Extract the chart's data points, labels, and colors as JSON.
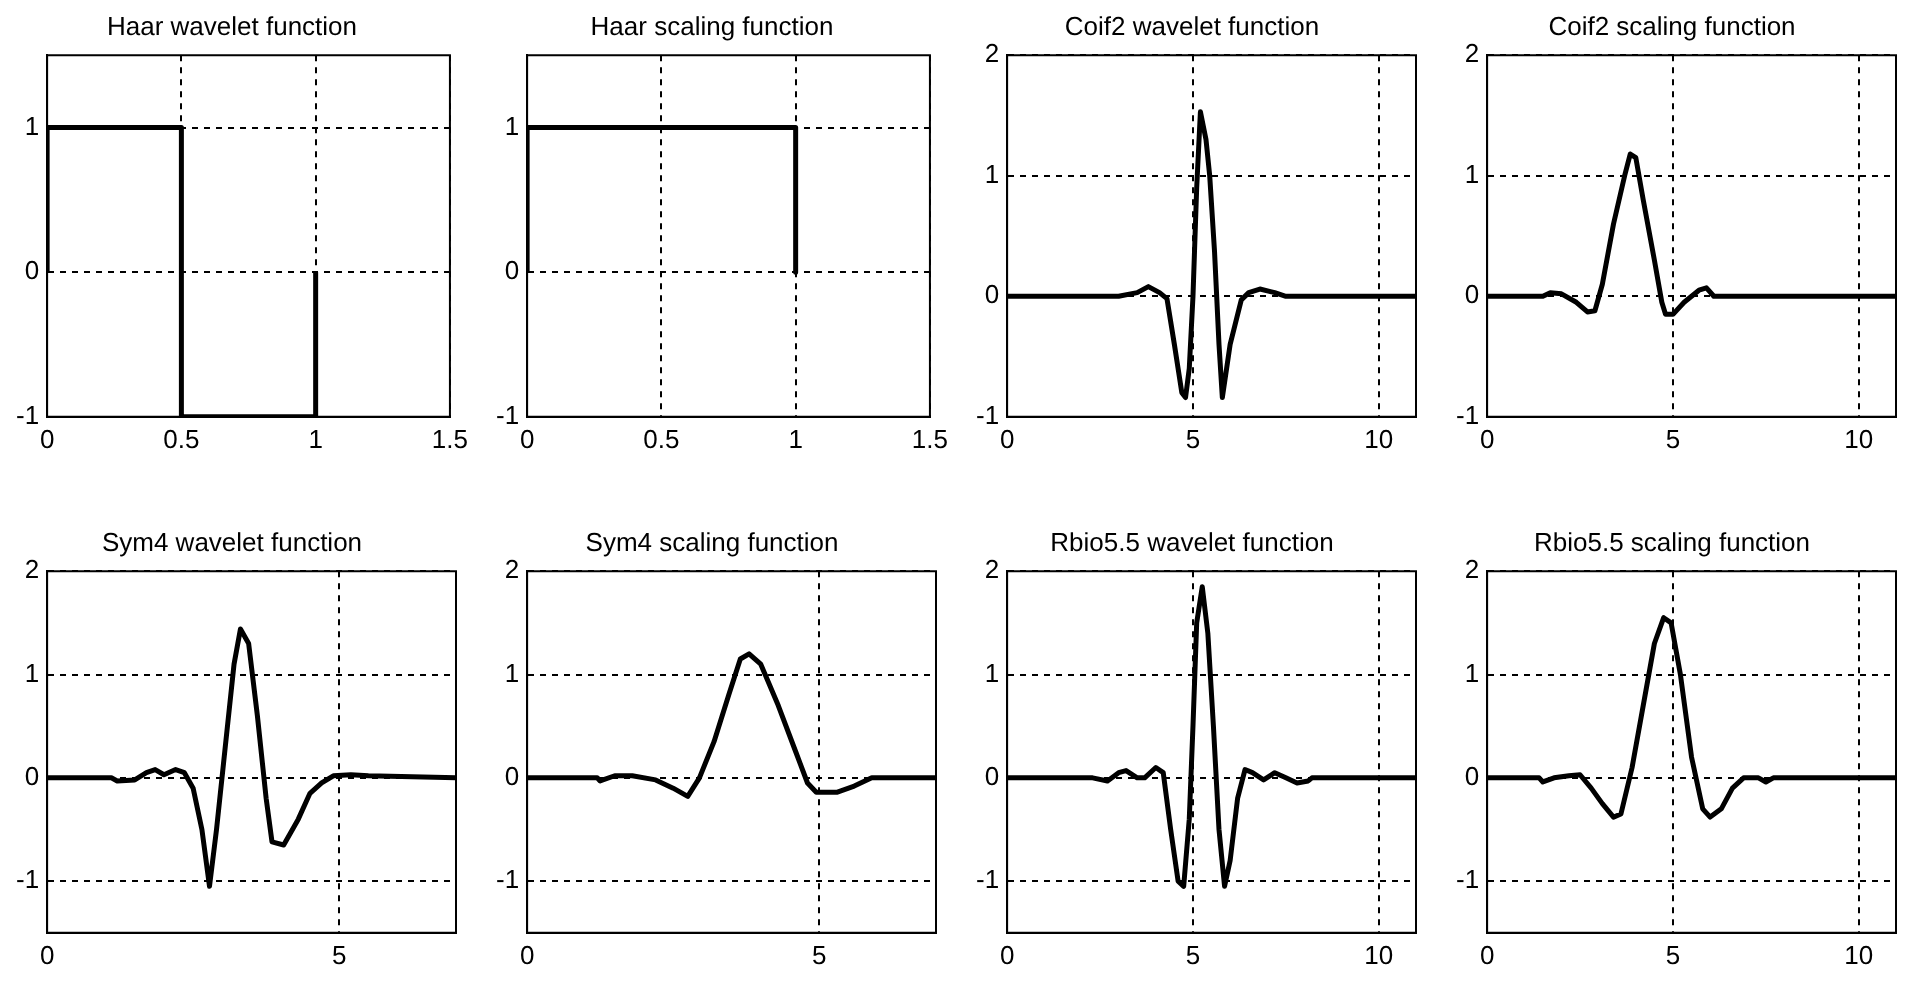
{
  "chart_data": [
    {
      "type": "line",
      "title": "Haar wavelet function",
      "x": [
        0,
        0,
        0.5,
        0.5,
        1,
        1
      ],
      "series": [
        {
          "color": "#000000",
          "values": [
            0,
            1,
            1,
            -1,
            -1,
            0
          ]
        }
      ],
      "xlim": [
        0,
        1.5
      ],
      "ylim": [
        -1,
        1.5
      ],
      "xticks": [
        0,
        0.5,
        1,
        1.5
      ],
      "yticks": [
        -1,
        0,
        1
      ],
      "grid": true
    },
    {
      "type": "line",
      "title": "Haar scaling function",
      "x": [
        0,
        0,
        1,
        1
      ],
      "series": [
        {
          "color": "#000000",
          "values": [
            0,
            1,
            1,
            0
          ]
        }
      ],
      "xlim": [
        0,
        1.5
      ],
      "ylim": [
        -1,
        1.5
      ],
      "xticks": [
        0,
        0.5,
        1,
        1.5
      ],
      "yticks": [
        -1,
        0,
        1
      ],
      "grid": true
    },
    {
      "type": "line",
      "title": "Coif2 wavelet function",
      "x": [
        0,
        3,
        3.5,
        3.8,
        4.1,
        4.3,
        4.5,
        4.7,
        4.8,
        4.9,
        5.0,
        5.1,
        5.2,
        5.35,
        5.45,
        5.58,
        5.7,
        5.79,
        6.0,
        6.3,
        6.5,
        6.8,
        7.2,
        7.5,
        11
      ],
      "series": [
        {
          "color": "#000000",
          "values": [
            0,
            0,
            0.03,
            0.08,
            0.03,
            -0.02,
            -0.4,
            -0.8,
            -0.84,
            -0.6,
            0,
            0.9,
            1.53,
            1.3,
            1.0,
            0.37,
            -0.4,
            -0.84,
            -0.4,
            -0.03,
            0.03,
            0.06,
            0.03,
            0,
            0
          ]
        }
      ],
      "xlim": [
        0,
        11
      ],
      "ylim": [
        -1,
        2
      ],
      "xticks": [
        0,
        5,
        10
      ],
      "yticks": [
        -1,
        0,
        1,
        2
      ],
      "grid": true
    },
    {
      "type": "line",
      "title": "Coif2 scaling function",
      "x": [
        0,
        1.5,
        1.7,
        2.0,
        2.4,
        2.7,
        2.9,
        3.1,
        3.4,
        3.7,
        3.85,
        4.0,
        4.2,
        4.5,
        4.7,
        4.8,
        5.0,
        5.3,
        5.7,
        5.9,
        6.1,
        11
      ],
      "series": [
        {
          "color": "#000000",
          "values": [
            0,
            0,
            0.03,
            0.02,
            -0.05,
            -0.13,
            -0.12,
            0.1,
            0.6,
            1.0,
            1.18,
            1.15,
            0.8,
            0.3,
            -0.05,
            -0.15,
            -0.15,
            -0.05,
            0.05,
            0.07,
            0,
            0
          ]
        }
      ],
      "xlim": [
        0,
        11
      ],
      "ylim": [
        -1,
        2
      ],
      "xticks": [
        0,
        5,
        10
      ],
      "yticks": [
        -1,
        0,
        1,
        2
      ],
      "grid": true
    },
    {
      "type": "line",
      "title": "Sym4 wavelet function",
      "x": [
        0,
        1.1,
        1.2,
        1.5,
        1.7,
        1.85,
        2.0,
        2.2,
        2.35,
        2.5,
        2.65,
        2.78,
        2.9,
        3.05,
        3.2,
        3.31,
        3.45,
        3.6,
        3.75,
        3.85,
        4.05,
        4.3,
        4.5,
        4.7,
        4.9,
        5.2,
        5.5,
        7
      ],
      "series": [
        {
          "color": "#000000",
          "values": [
            0,
            0,
            -0.03,
            -0.02,
            0.05,
            0.08,
            0.03,
            0.08,
            0.05,
            -0.1,
            -0.5,
            -1.05,
            -0.5,
            0.3,
            1.1,
            1.44,
            1.3,
            0.6,
            -0.2,
            -0.62,
            -0.65,
            -0.4,
            -0.15,
            -0.05,
            0.02,
            0.03,
            0.02,
            0
          ]
        }
      ],
      "xlim": [
        0,
        7
      ],
      "ylim": [
        -1.5,
        2
      ],
      "xticks": [
        0,
        5
      ],
      "yticks": [
        -1,
        0,
        1,
        2
      ],
      "grid": true
    },
    {
      "type": "line",
      "title": "Sym4 scaling function",
      "x": [
        0,
        1.2,
        1.25,
        1.5,
        1.8,
        2.2,
        2.5,
        2.75,
        2.95,
        3.2,
        3.45,
        3.65,
        3.8,
        4.0,
        4.3,
        4.6,
        4.8,
        4.95,
        5.3,
        5.6,
        5.9,
        7
      ],
      "series": [
        {
          "color": "#000000",
          "values": [
            0,
            0,
            -0.03,
            0.02,
            0.02,
            -0.02,
            -0.1,
            -0.18,
            0,
            0.35,
            0.8,
            1.15,
            1.2,
            1.1,
            0.7,
            0.25,
            -0.05,
            -0.14,
            -0.14,
            -0.08,
            0,
            0
          ]
        }
      ],
      "xlim": [
        0,
        7
      ],
      "ylim": [
        -1.5,
        2
      ],
      "xticks": [
        0,
        5
      ],
      "yticks": [
        -1,
        0,
        1,
        2
      ],
      "grid": true
    },
    {
      "type": "line",
      "title": "Rbio5.5 wavelet function",
      "x": [
        0,
        2.3,
        2.7,
        3.0,
        3.2,
        3.5,
        3.7,
        4.0,
        4.2,
        4.4,
        4.6,
        4.75,
        4.9,
        5.0,
        5.1,
        5.25,
        5.4,
        5.55,
        5.7,
        5.85,
        6.0,
        6.2,
        6.4,
        6.6,
        6.9,
        7.2,
        7.5,
        7.8,
        8.1,
        8.2,
        11
      ],
      "series": [
        {
          "color": "#000000",
          "values": [
            0,
            0,
            -0.03,
            0.05,
            0.07,
            0,
            0,
            0.1,
            0.05,
            -0.5,
            -1.0,
            -1.05,
            -0.4,
            0.5,
            1.5,
            1.85,
            1.4,
            0.5,
            -0.5,
            -1.05,
            -0.8,
            -0.2,
            0.08,
            0.05,
            -0.02,
            0.05,
            0,
            -0.05,
            -0.03,
            0,
            0
          ]
        }
      ],
      "xlim": [
        0,
        11
      ],
      "ylim": [
        -1.5,
        2
      ],
      "xticks": [
        0,
        5,
        10
      ],
      "yticks": [
        -1,
        0,
        1,
        2
      ],
      "grid": true
    },
    {
      "type": "line",
      "title": "Rbio5.5 scaling function",
      "x": [
        0,
        1.4,
        1.5,
        1.8,
        2.2,
        2.5,
        2.8,
        3.1,
        3.4,
        3.6,
        3.9,
        4.2,
        4.5,
        4.75,
        4.95,
        5.2,
        5.5,
        5.8,
        6.0,
        6.3,
        6.6,
        6.9,
        7.3,
        7.5,
        7.7,
        11
      ],
      "series": [
        {
          "color": "#000000",
          "values": [
            0,
            0,
            -0.04,
            0,
            0.02,
            0.03,
            -0.1,
            -0.25,
            -0.38,
            -0.35,
            0.1,
            0.7,
            1.3,
            1.55,
            1.5,
            1.0,
            0.2,
            -0.3,
            -0.38,
            -0.3,
            -0.1,
            0,
            0,
            -0.04,
            0,
            0
          ]
        }
      ],
      "xlim": [
        0,
        11
      ],
      "ylim": [
        -1.5,
        2
      ],
      "xticks": [
        0,
        5,
        10
      ],
      "yticks": [
        -1,
        0,
        1,
        2
      ],
      "grid": true
    }
  ]
}
